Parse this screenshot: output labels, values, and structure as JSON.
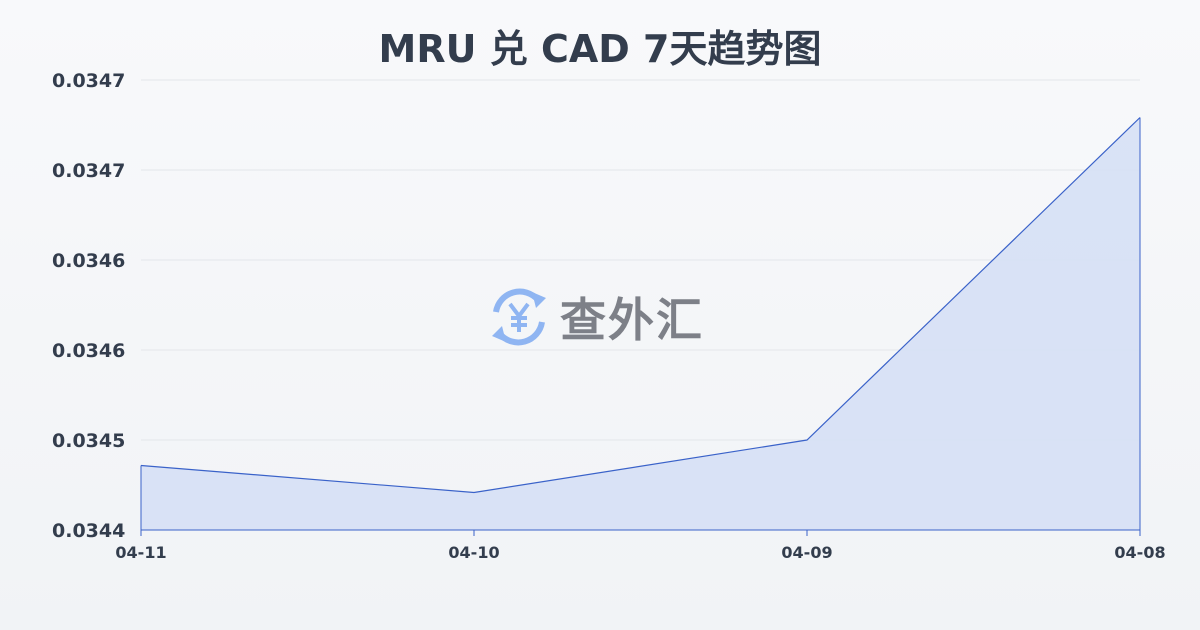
{
  "chart_data": {
    "type": "area",
    "title": "MRU 兑 CAD 7天趋势图",
    "categories": [
      "04-11",
      "04-10",
      "04-09",
      "04-08"
    ],
    "values": [
      0.034473,
      0.034455,
      0.03449,
      0.034705
    ],
    "yticks": [
      0.03443,
      0.03449,
      0.03455,
      0.03461,
      0.03467,
      0.03473
    ],
    "ytick_labels": [
      "0.0344",
      "0.0345",
      "0.0346",
      "0.0346",
      "0.0347",
      "0.0347"
    ],
    "ylim": [
      0.03443,
      0.03473
    ],
    "grid": true,
    "line_color": "#3a62c9",
    "fill_color": "#d6e0f5"
  },
  "watermark": {
    "text": "查外汇",
    "icon": "yen-exchange-icon",
    "icon_color": "#8fb5f2"
  }
}
